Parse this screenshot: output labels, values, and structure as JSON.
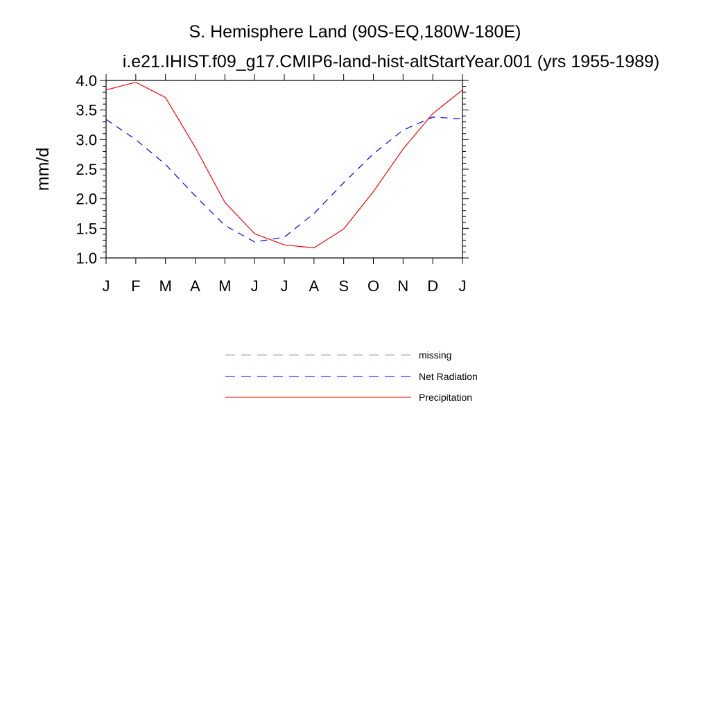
{
  "chart_data": {
    "type": "line",
    "title": "S. Hemisphere Land (90S-EQ,180W-180E)",
    "subtitle": "i.e21.IHIST.f09_g17.CMIP6-land-hist-altStartYear.001 (yrs 1955-1989)",
    "xlabel": "",
    "ylabel": "mm/d",
    "categories": [
      "J",
      "F",
      "M",
      "A",
      "M",
      "J",
      "J",
      "A",
      "S",
      "O",
      "N",
      "D",
      "J"
    ],
    "ylim": [
      1.0,
      4.0
    ],
    "yticks": [
      1.0,
      1.5,
      2.0,
      2.5,
      3.0,
      3.5,
      4.0
    ],
    "ytick_labels": [
      "1.0",
      "1.5",
      "2.0",
      "2.5",
      "3.0",
      "3.5",
      "4.0"
    ],
    "grid": false,
    "legend_position": "below",
    "series": [
      {
        "name": "Net Radiation",
        "color": "#0000ff",
        "style": "dashed",
        "values": [
          3.34,
          3.0,
          2.58,
          2.05,
          1.55,
          1.27,
          1.35,
          1.75,
          2.27,
          2.76,
          3.16,
          3.38,
          3.35
        ]
      },
      {
        "name": "Precipitation",
        "color": "#ff0000",
        "style": "solid",
        "values": [
          3.84,
          3.97,
          3.71,
          2.87,
          1.94,
          1.41,
          1.22,
          1.17,
          1.49,
          2.12,
          2.84,
          3.44,
          3.84
        ]
      }
    ],
    "legend": [
      {
        "name": "missing",
        "color": "#999999",
        "style": "dashed"
      },
      {
        "name": "Net Radiation",
        "color": "#0000ff",
        "style": "dashed"
      },
      {
        "name": "Precipitation",
        "color": "#ff0000",
        "style": "solid"
      }
    ]
  }
}
